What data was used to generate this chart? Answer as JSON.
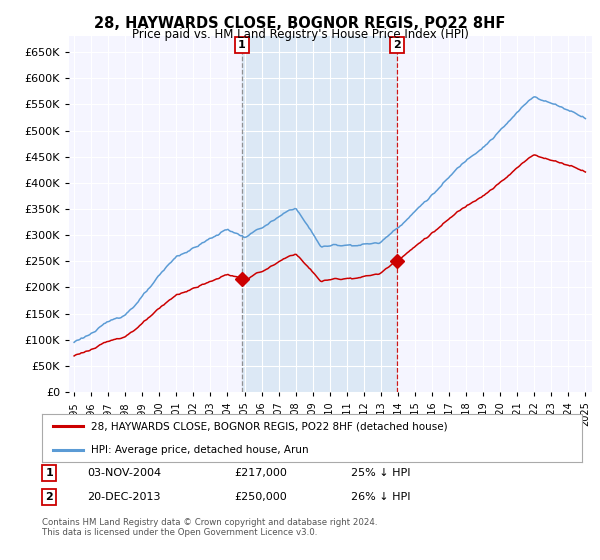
{
  "title": "28, HAYWARDS CLOSE, BOGNOR REGIS, PO22 8HF",
  "subtitle": "Price paid vs. HM Land Registry's House Price Index (HPI)",
  "ytick_vals": [
    0,
    50000,
    100000,
    150000,
    200000,
    250000,
    300000,
    350000,
    400000,
    450000,
    500000,
    550000,
    600000,
    650000
  ],
  "ylim": [
    0,
    680000
  ],
  "hpi_color": "#5b9bd5",
  "price_color": "#cc0000",
  "shaded_color": "#dce8f5",
  "sale1_date": 2004.84,
  "sale1_price": 217000,
  "sale2_date": 2013.96,
  "sale2_price": 250000,
  "legend_label1": "28, HAYWARDS CLOSE, BOGNOR REGIS, PO22 8HF (detached house)",
  "legend_label2": "HPI: Average price, detached house, Arun",
  "annot1_label": "1",
  "annot1_date_str": "03-NOV-2004",
  "annot1_price_str": "£217,000",
  "annot1_pct_str": "25% ↓ HPI",
  "annot2_label": "2",
  "annot2_date_str": "20-DEC-2013",
  "annot2_price_str": "£250,000",
  "annot2_pct_str": "26% ↓ HPI",
  "footnote": "Contains HM Land Registry data © Crown copyright and database right 2024.\nThis data is licensed under the Open Government Licence v3.0.",
  "background_color": "#ffffff",
  "plot_bg_color": "#f5f5ff"
}
